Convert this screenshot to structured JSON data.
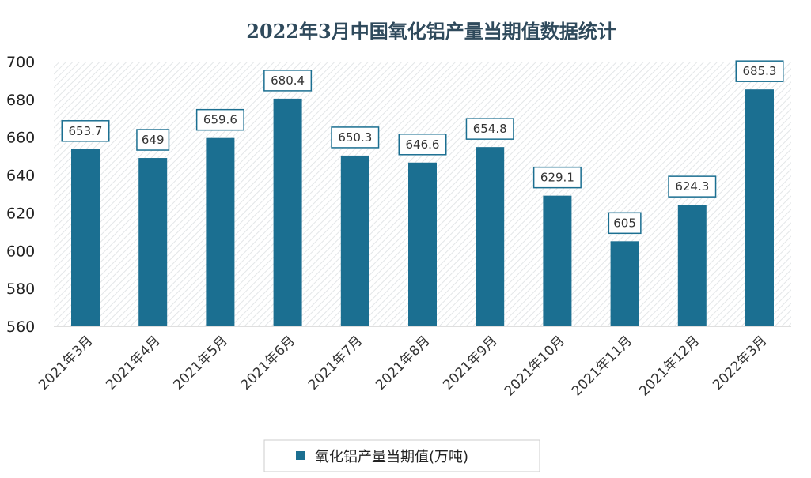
{
  "chart_data": {
    "type": "bar",
    "title": "2022年3月中国氧化铝产量当期值数据统计",
    "categories": [
      "2021年3月",
      "2021年4月",
      "2021年5月",
      "2021年6月",
      "2021年7月",
      "2021年8月",
      "2021年9月",
      "2021年10月",
      "2021年11月",
      "2021年12月",
      "2022年3月"
    ],
    "series": [
      {
        "name": "氧化铝产量当期值(万吨)",
        "values": [
          653.7,
          649,
          659.6,
          680.4,
          650.3,
          646.6,
          654.8,
          629.1,
          605,
          624.3,
          685.3
        ],
        "labels": [
          "653.7",
          "649",
          "659.6",
          "680.4",
          "650.3",
          "646.6",
          "654.8",
          "629.1",
          "605",
          "624.3",
          "685.3"
        ]
      }
    ],
    "ylim": [
      560,
      700
    ],
    "yticks": [
      "560",
      "580",
      "600",
      "620",
      "640",
      "660",
      "680",
      "700"
    ],
    "xlabel": "",
    "ylabel": "",
    "legend_position": "bottom",
    "grid": false,
    "colors": {
      "bar": "#1b6f91",
      "title": "#2f4a5c",
      "label_border": "#1b6f91",
      "hatch": "#e3e6e8"
    }
  }
}
